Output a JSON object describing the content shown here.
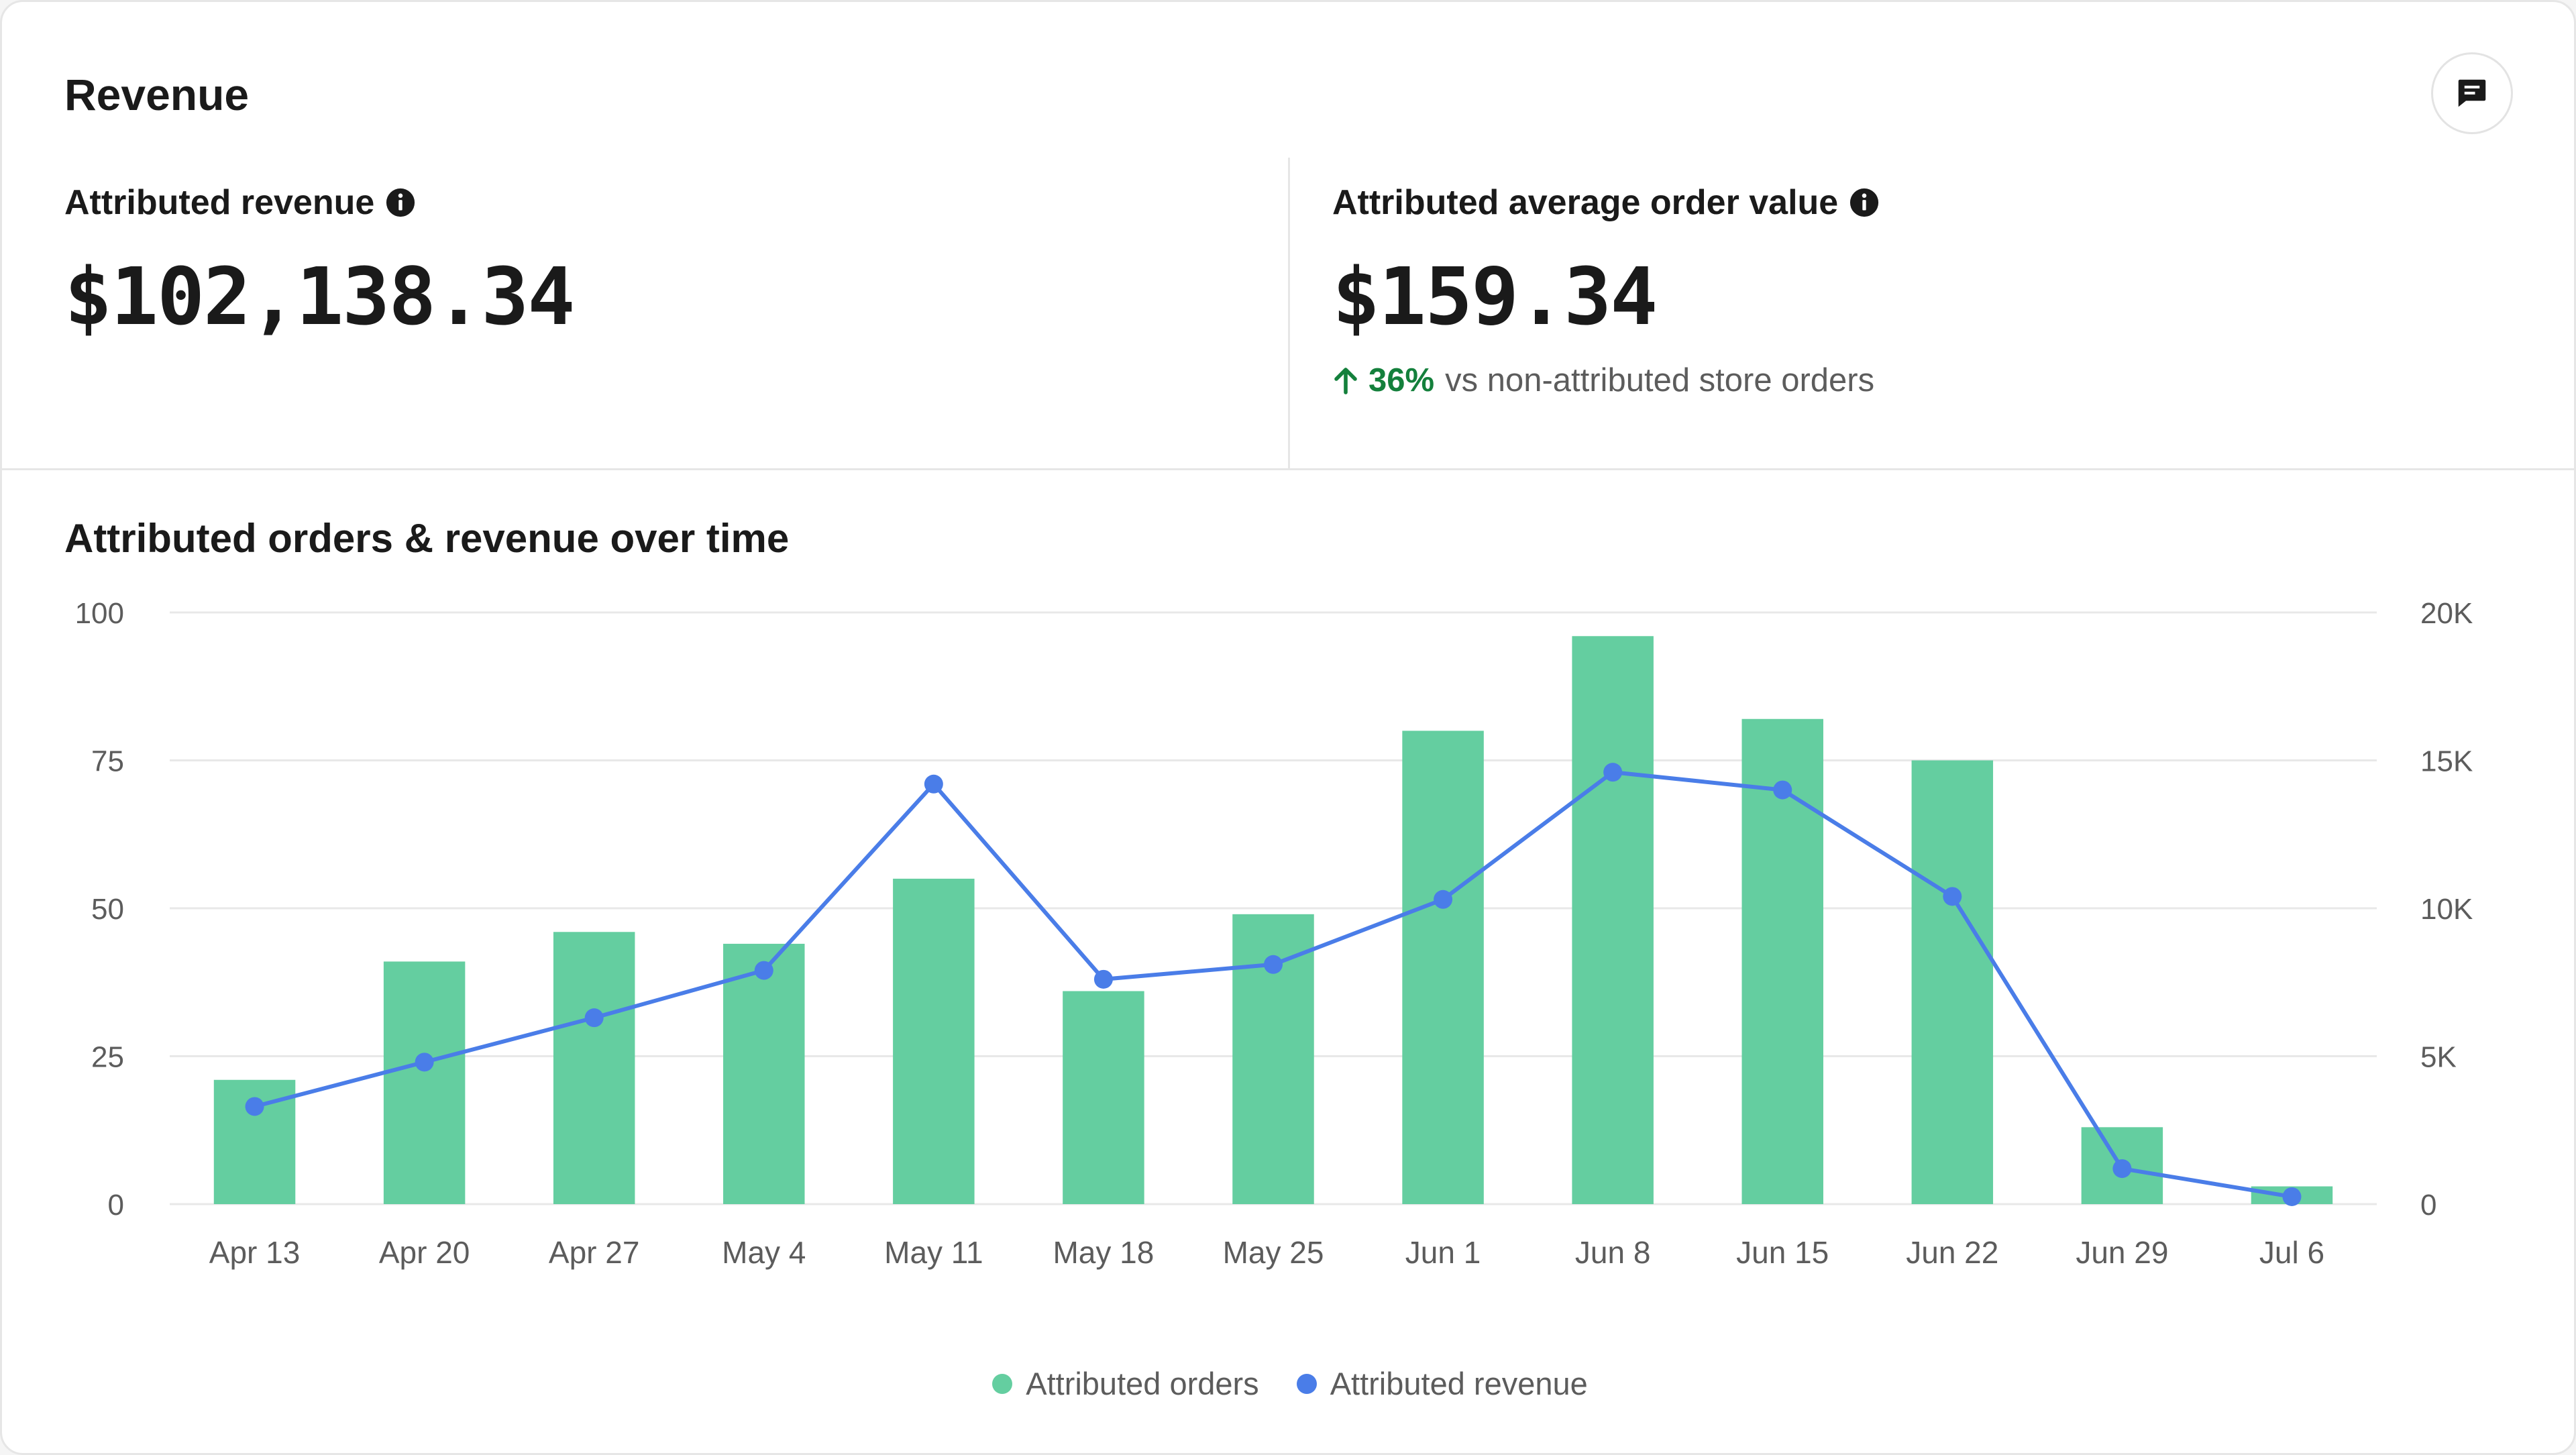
{
  "card": {
    "title": "Revenue",
    "feedback_icon": "message-square-icon"
  },
  "metrics": {
    "attributed_revenue": {
      "label": "Attributed revenue",
      "value": "$102,138.34",
      "info_icon": "info-circle-icon"
    },
    "attributed_aov": {
      "label": "Attributed average order value",
      "value": "$159.34",
      "info_icon": "info-circle-icon",
      "comparison": {
        "arrow_icon": "arrow-up-icon",
        "percent": "36%",
        "text": "vs non-attributed store orders",
        "color": "#14803c"
      }
    }
  },
  "chart_data": {
    "type": "bar",
    "title": "Attributed orders & revenue over time",
    "categories": [
      "Apr 13",
      "Apr 20",
      "Apr 27",
      "May 4",
      "May 11",
      "May 18",
      "May 25",
      "Jun 1",
      "Jun 8",
      "Jun 15",
      "Jun 22",
      "Jun 29",
      "Jul 6"
    ],
    "series": [
      {
        "name": "Attributed orders",
        "type": "bar",
        "axis": "left",
        "color": "#64cea0",
        "values": [
          21,
          41,
          46,
          44,
          55,
          36,
          49,
          80,
          96,
          82,
          75,
          13,
          3
        ]
      },
      {
        "name": "Attributed revenue",
        "type": "line",
        "axis": "right",
        "color": "#4a7de8",
        "values": [
          3300,
          4800,
          6300,
          7900,
          14200,
          7600,
          8100,
          10300,
          14600,
          14000,
          10400,
          1200,
          250
        ]
      }
    ],
    "y_left": {
      "range": [
        0,
        100
      ],
      "ticks": [
        0,
        25,
        50,
        75,
        100
      ],
      "tick_labels": [
        "0",
        "25",
        "50",
        "75",
        "100"
      ]
    },
    "y_right": {
      "range": [
        0,
        20000
      ],
      "ticks": [
        0,
        5000,
        10000,
        15000,
        20000
      ],
      "tick_labels": [
        "0",
        "5K",
        "10K",
        "15K",
        "20K"
      ]
    },
    "grid": true,
    "legend_position": "bottom-center",
    "grid_color": "#e8e8e8",
    "tick_label_color": "#5c5c5c"
  }
}
